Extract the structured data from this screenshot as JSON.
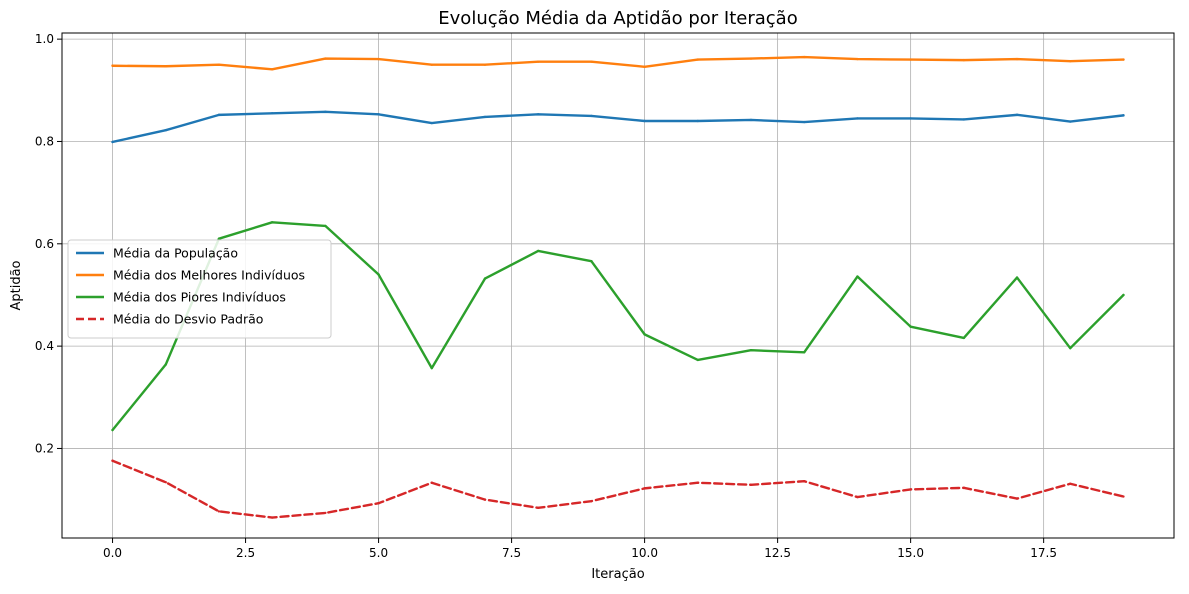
{
  "chart_data": {
    "type": "line",
    "title": "Evolução Média da Aptidão por Iteração",
    "xlabel": "Iteração",
    "ylabel": "Aptidão",
    "xlim": [
      -0.95,
      19.95
    ],
    "ylim": [
      0.025,
      1.012
    ],
    "x_ticks": [
      0.0,
      2.5,
      5.0,
      7.5,
      10.0,
      12.5,
      15.0,
      17.5
    ],
    "x_tick_labels": [
      "0.0",
      "2.5",
      "5.0",
      "7.5",
      "10.0",
      "12.5",
      "15.0",
      "17.5"
    ],
    "y_ticks": [
      0.2,
      0.4,
      0.6,
      0.8,
      1.0
    ],
    "y_tick_labels": [
      "0.2",
      "0.4",
      "0.6",
      "0.8",
      "1.0"
    ],
    "grid": true,
    "legend_position": "center-left",
    "x": [
      0,
      1,
      2,
      3,
      4,
      5,
      6,
      7,
      8,
      9,
      10,
      11,
      12,
      13,
      14,
      15,
      16,
      17,
      18,
      19
    ],
    "series": [
      {
        "name": "Média da População",
        "color": "#1f77b4",
        "style": "solid",
        "values": [
          0.799,
          0.822,
          0.852,
          0.855,
          0.858,
          0.853,
          0.836,
          0.848,
          0.853,
          0.85,
          0.84,
          0.84,
          0.842,
          0.838,
          0.845,
          0.845,
          0.843,
          0.852,
          0.839,
          0.851
        ]
      },
      {
        "name": "Média dos Melhores Indivíduos",
        "color": "#ff7f0e",
        "style": "solid",
        "values": [
          0.948,
          0.947,
          0.95,
          0.941,
          0.962,
          0.961,
          0.95,
          0.95,
          0.956,
          0.956,
          0.946,
          0.96,
          0.962,
          0.965,
          0.961,
          0.96,
          0.959,
          0.961,
          0.957,
          0.96
        ]
      },
      {
        "name": "Média dos Piores Indivíduos",
        "color": "#2ca02c",
        "style": "solid",
        "values": [
          0.236,
          0.364,
          0.61,
          0.642,
          0.635,
          0.54,
          0.357,
          0.532,
          0.586,
          0.566,
          0.423,
          0.373,
          0.392,
          0.388,
          0.536,
          0.438,
          0.416,
          0.534,
          0.396,
          0.5
        ]
      },
      {
        "name": "Média do Desvio Padrão",
        "color": "#d62728",
        "style": "dashed",
        "values": [
          0.176,
          0.134,
          0.077,
          0.065,
          0.074,
          0.093,
          0.133,
          0.1,
          0.084,
          0.097,
          0.122,
          0.133,
          0.129,
          0.136,
          0.105,
          0.12,
          0.123,
          0.102,
          0.131,
          0.106
        ]
      }
    ]
  }
}
